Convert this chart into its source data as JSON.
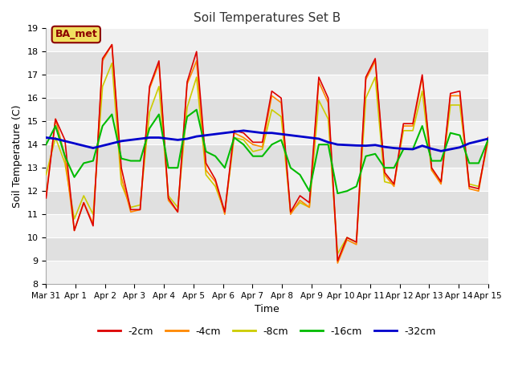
{
  "title": "Soil Temperatures Set B",
  "xlabel": "Time",
  "ylabel": "Soil Temperature (C)",
  "ylim": [
    8.0,
    19.0
  ],
  "yticks": [
    8.0,
    9.0,
    10.0,
    11.0,
    12.0,
    13.0,
    14.0,
    15.0,
    16.0,
    17.0,
    18.0,
    19.0
  ],
  "fig_bg": "#ffffff",
  "plot_bg_light": "#f0f0f0",
  "plot_bg_dark": "#e0e0e0",
  "legend_label": "BA_met",
  "legend_box_fill": "#f0e060",
  "legend_box_edge": "#8b0000",
  "legend_text_color": "#8b0000",
  "series_colors": {
    "-2cm": "#dd0000",
    "-4cm": "#ff8800",
    "-8cm": "#cccc00",
    "-16cm": "#00bb00",
    "-32cm": "#0000cc"
  },
  "x_tick_labels": [
    "Mar 31",
    "Apr 1",
    "Apr 2",
    "Apr 3",
    "Apr 4",
    "Apr 5",
    "Apr 6",
    "Apr 7",
    "Apr 8",
    "Apr 9",
    "Apr 10",
    "Apr 11",
    "Apr 12",
    "Apr 13",
    "Apr 14",
    "Apr 15"
  ],
  "t_2cm": [
    11.7,
    15.1,
    14.2,
    10.3,
    11.5,
    10.5,
    17.7,
    18.3,
    13.0,
    11.2,
    11.2,
    16.5,
    17.6,
    11.7,
    11.1,
    16.7,
    18.0,
    13.2,
    12.5,
    11.1,
    14.6,
    14.5,
    14.1,
    14.1,
    16.3,
    16.0,
    11.1,
    11.8,
    11.5,
    16.9,
    16.0,
    9.0,
    10.0,
    9.8,
    16.9,
    17.7,
    12.8,
    12.3,
    14.9,
    14.9,
    17.0,
    13.0,
    12.4,
    16.2,
    16.3,
    12.2,
    12.1,
    14.3
  ],
  "t_4cm": [
    11.8,
    15.1,
    13.5,
    10.3,
    11.5,
    10.6,
    17.6,
    18.3,
    12.6,
    11.1,
    11.2,
    16.4,
    17.5,
    11.6,
    11.1,
    16.6,
    17.6,
    12.9,
    12.4,
    11.0,
    14.5,
    14.3,
    14.0,
    13.9,
    16.1,
    15.8,
    11.0,
    11.6,
    11.3,
    16.7,
    15.8,
    8.9,
    9.9,
    9.7,
    16.8,
    17.6,
    12.7,
    12.2,
    14.8,
    14.8,
    16.9,
    12.9,
    12.3,
    16.1,
    16.1,
    12.1,
    12.0,
    14.3
  ],
  "t_8cm": [
    12.7,
    14.3,
    13.2,
    10.8,
    11.8,
    11.0,
    16.5,
    17.5,
    12.3,
    11.3,
    11.4,
    15.4,
    16.5,
    11.8,
    11.3,
    15.6,
    16.9,
    12.7,
    12.2,
    11.1,
    14.3,
    14.2,
    13.7,
    13.8,
    15.5,
    15.2,
    11.1,
    11.5,
    11.3,
    15.9,
    15.1,
    9.3,
    10.0,
    9.8,
    16.0,
    16.9,
    12.4,
    12.3,
    14.6,
    14.6,
    16.3,
    12.9,
    12.4,
    15.7,
    15.7,
    12.3,
    12.2,
    14.1
  ],
  "t_16cm": [
    14.0,
    14.8,
    13.5,
    12.6,
    13.2,
    13.3,
    14.8,
    15.3,
    13.4,
    13.3,
    13.3,
    14.7,
    15.3,
    13.0,
    13.0,
    15.2,
    15.5,
    13.7,
    13.5,
    13.0,
    14.3,
    14.0,
    13.5,
    13.5,
    14.0,
    14.2,
    13.0,
    12.7,
    12.0,
    14.0,
    14.0,
    11.9,
    12.0,
    12.2,
    13.5,
    13.6,
    13.0,
    13.0,
    13.8,
    13.8,
    14.8,
    13.3,
    13.3,
    14.5,
    14.4,
    13.2,
    13.2,
    14.2
  ],
  "t_32cm": [
    14.3,
    14.25,
    14.15,
    14.05,
    13.95,
    13.85,
    13.95,
    14.05,
    14.15,
    14.2,
    14.25,
    14.3,
    14.3,
    14.25,
    14.2,
    14.25,
    14.35,
    14.4,
    14.45,
    14.5,
    14.55,
    14.6,
    14.55,
    14.5,
    14.5,
    14.45,
    14.4,
    14.35,
    14.3,
    14.25,
    14.1,
    14.0,
    13.98,
    13.96,
    13.95,
    13.98,
    13.9,
    13.85,
    13.82,
    13.8,
    13.95,
    13.82,
    13.72,
    13.8,
    13.88,
    14.05,
    14.15,
    14.25
  ]
}
